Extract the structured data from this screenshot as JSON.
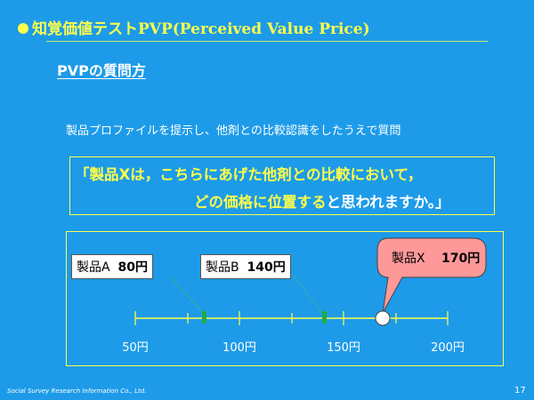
{
  "slide": {
    "title_jp": "知覚価値テスト",
    "title_latin": "PVP(Perceived Value Price)",
    "subtitle": "PVPの質問方",
    "description": "製品プロファイルを提示し、他剤との比較認識をしたうえで質問",
    "question_line1_a": "「製品Xは，こちらにあげた他剤との比較において，",
    "question_line2_a": "どの価格に位置する",
    "question_line2_b": "と思われますか。」",
    "product_a_name": "製品A",
    "product_a_price": "80円",
    "product_b_name": "製品B",
    "product_b_price": "140円",
    "product_x_name": "製品X",
    "product_x_price": "170円",
    "scale_ticks": [
      "50円",
      "100円",
      "150円",
      "200円"
    ],
    "footer": "Social Survey Research Information Co., Ltd.",
    "page_number": "17"
  },
  "colors": {
    "background": "#1d9be9",
    "accent": "#ffff4a",
    "callout": "#ff9999",
    "marker_green": "#22aa44"
  }
}
